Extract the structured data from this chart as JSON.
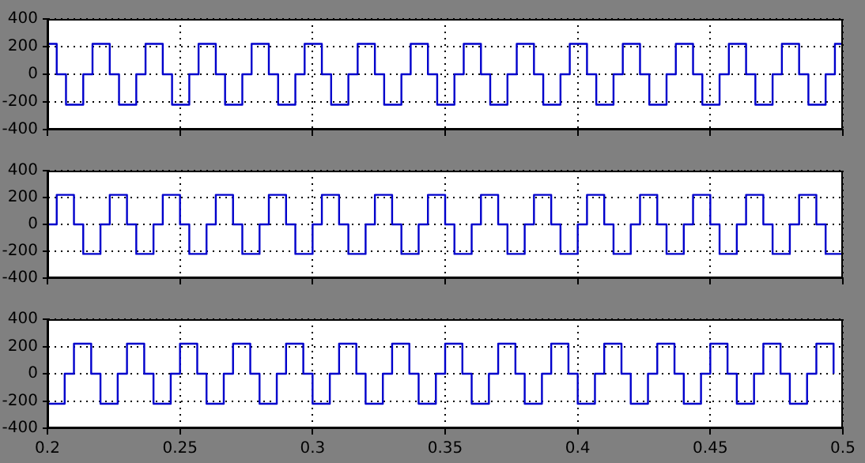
{
  "chart_data": [
    {
      "type": "step",
      "xlim": [
        0.2,
        0.5
      ],
      "ylim": [
        -400,
        400
      ],
      "xticks": [
        0.2,
        0.25,
        0.3,
        0.35,
        0.4,
        0.45,
        0.5
      ],
      "yticks": [
        -400,
        -200,
        0,
        200,
        400
      ],
      "grid": true,
      "legend": false,
      "tick_labels": "y",
      "series": [
        {
          "color": "#0000cc",
          "x": [
            0.2,
            0.2035,
            0.207,
            0.2135,
            0.217,
            0.2235,
            0.227,
            0.2335,
            0.237,
            0.2435,
            0.247,
            0.2535,
            0.257,
            0.2635,
            0.267,
            0.2735,
            0.277,
            0.2835,
            0.287,
            0.2935,
            0.297,
            0.3035,
            0.307,
            0.3135,
            0.317,
            0.3235,
            0.327,
            0.3335,
            0.337,
            0.3435,
            0.347,
            0.3535,
            0.357,
            0.3635,
            0.367,
            0.3735,
            0.377,
            0.3835,
            0.387,
            0.3935,
            0.397,
            0.4035,
            0.407,
            0.4135,
            0.417,
            0.4235,
            0.427,
            0.4335,
            0.437,
            0.4435,
            0.447,
            0.4535,
            0.457,
            0.4635,
            0.467,
            0.4735,
            0.477,
            0.4835,
            0.487,
            0.4935,
            0.497,
            0.5
          ],
          "values": [
            220,
            0,
            -220,
            0,
            220,
            0,
            -220,
            0,
            220,
            0,
            -220,
            0,
            220,
            0,
            -220,
            0,
            220,
            0,
            -220,
            0,
            220,
            0,
            -220,
            0,
            220,
            0,
            -220,
            0,
            220,
            0,
            -220,
            0,
            220,
            0,
            -220,
            0,
            220,
            0,
            -220,
            0,
            220,
            0,
            -220,
            0,
            220,
            0,
            -220,
            0,
            220,
            0,
            -220,
            0,
            220,
            0,
            -220,
            0,
            220,
            0,
            -220,
            0,
            220,
            220
          ]
        }
      ]
    },
    {
      "type": "step",
      "xlim": [
        0.2,
        0.5
      ],
      "ylim": [
        -400,
        400
      ],
      "xticks": [
        0.2,
        0.25,
        0.3,
        0.35,
        0.4,
        0.45,
        0.5
      ],
      "yticks": [
        -400,
        -200,
        0,
        200,
        400
      ],
      "grid": true,
      "legend": false,
      "tick_labels": "y",
      "series": [
        {
          "color": "#0000cc",
          "x": [
            0.2,
            0.2035,
            0.21,
            0.2135,
            0.22,
            0.2235,
            0.23,
            0.2335,
            0.24,
            0.2435,
            0.25,
            0.2535,
            0.26,
            0.2635,
            0.27,
            0.2735,
            0.28,
            0.2835,
            0.29,
            0.2935,
            0.3,
            0.3035,
            0.31,
            0.3135,
            0.32,
            0.3235,
            0.33,
            0.3335,
            0.34,
            0.3435,
            0.35,
            0.3535,
            0.36,
            0.3635,
            0.37,
            0.3735,
            0.38,
            0.3835,
            0.39,
            0.3935,
            0.4,
            0.4035,
            0.41,
            0.4135,
            0.42,
            0.4235,
            0.43,
            0.4335,
            0.44,
            0.4435,
            0.45,
            0.4535,
            0.46,
            0.4635,
            0.47,
            0.4735,
            0.48,
            0.4835,
            0.49,
            0.4935,
            0.5
          ],
          "values": [
            0,
            220,
            0,
            -220,
            0,
            220,
            0,
            -220,
            0,
            220,
            0,
            -220,
            0,
            220,
            0,
            -220,
            0,
            220,
            0,
            -220,
            0,
            220,
            0,
            -220,
            0,
            220,
            0,
            -220,
            0,
            220,
            0,
            -220,
            0,
            220,
            0,
            -220,
            0,
            220,
            0,
            -220,
            0,
            220,
            0,
            -220,
            0,
            220,
            0,
            -220,
            0,
            220,
            0,
            -220,
            0,
            220,
            0,
            -220,
            0,
            220,
            0,
            -220,
            0
          ]
        }
      ]
    },
    {
      "type": "step",
      "xlim": [
        0.2,
        0.5
      ],
      "ylim": [
        -400,
        400
      ],
      "xticks": [
        0.2,
        0.25,
        0.3,
        0.35,
        0.4,
        0.45,
        0.5
      ],
      "yticks": [
        -400,
        -200,
        0,
        200,
        400
      ],
      "grid": true,
      "legend": false,
      "series": [
        {
          "color": "#0000cc",
          "x": [
            0.2,
            0.2065,
            0.21,
            0.2165,
            0.22,
            0.2265,
            0.23,
            0.2365,
            0.24,
            0.2465,
            0.25,
            0.2565,
            0.26,
            0.2665,
            0.27,
            0.2765,
            0.28,
            0.2865,
            0.29,
            0.2965,
            0.3,
            0.3065,
            0.31,
            0.3165,
            0.32,
            0.3265,
            0.33,
            0.3365,
            0.34,
            0.3465,
            0.35,
            0.3565,
            0.36,
            0.3665,
            0.37,
            0.3765,
            0.38,
            0.3865,
            0.39,
            0.3965,
            0.4,
            0.4065,
            0.41,
            0.4165,
            0.42,
            0.4265,
            0.43,
            0.4365,
            0.44,
            0.4465,
            0.45,
            0.4565,
            0.46,
            0.4665,
            0.47,
            0.4765,
            0.48,
            0.4865,
            0.49,
            0.4965
          ],
          "values": [
            -220,
            0,
            220,
            0,
            -220,
            0,
            220,
            0,
            -220,
            0,
            220,
            0,
            -220,
            0,
            220,
            0,
            -220,
            0,
            220,
            0,
            -220,
            0,
            220,
            0,
            -220,
            0,
            220,
            0,
            -220,
            0,
            220,
            0,
            -220,
            0,
            220,
            0,
            -220,
            0,
            220,
            0,
            -220,
            0,
            220,
            0,
            -220,
            0,
            220,
            0,
            -220,
            0,
            220,
            0,
            -220,
            0,
            220,
            0,
            -220,
            0,
            220,
            0
          ]
        }
      ]
    }
  ]
}
